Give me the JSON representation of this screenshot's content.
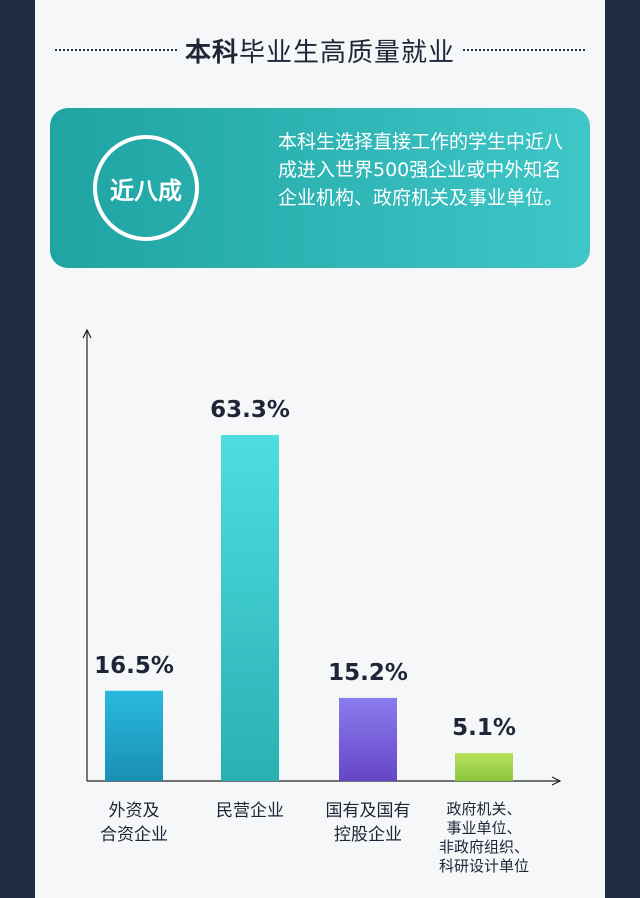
{
  "header": {
    "title_bold": "本科",
    "title_rest": "毕业生高质量就业"
  },
  "banner": {
    "badge": "近八成",
    "text": "本科生选择直接工作的学生中近八成进入世界500强企业或中外知名企业机构、政府机关及事业单位。"
  },
  "colors": {
    "background": "#1f2d45",
    "card": "#f6f7f9",
    "banner_start": "#1fa3a3",
    "banner_end": "#3fc6c6"
  },
  "chart_data": {
    "type": "bar",
    "categories": [
      "外资及\n合资企业",
      "民营企业",
      "国有及国有\n控股企业",
      "政府机关、\n事业单位、\n非政府组织、\n科研设计单位"
    ],
    "values": [
      16.5,
      63.3,
      15.2,
      5.1
    ],
    "value_labels": [
      "16.5%",
      "63.3%",
      "15.2%",
      "5.1%"
    ],
    "unit": "%",
    "bar_colors": [
      [
        "#29b9e0",
        "#1a8fb3"
      ],
      [
        "#4fdde0",
        "#29b0b3"
      ],
      [
        "#8b7cf0",
        "#6646c4"
      ],
      [
        "#b6e45c",
        "#8cc43e"
      ]
    ],
    "ylim": [
      0,
      75
    ],
    "grid": false,
    "title": "",
    "xlabel": "",
    "ylabel": ""
  }
}
